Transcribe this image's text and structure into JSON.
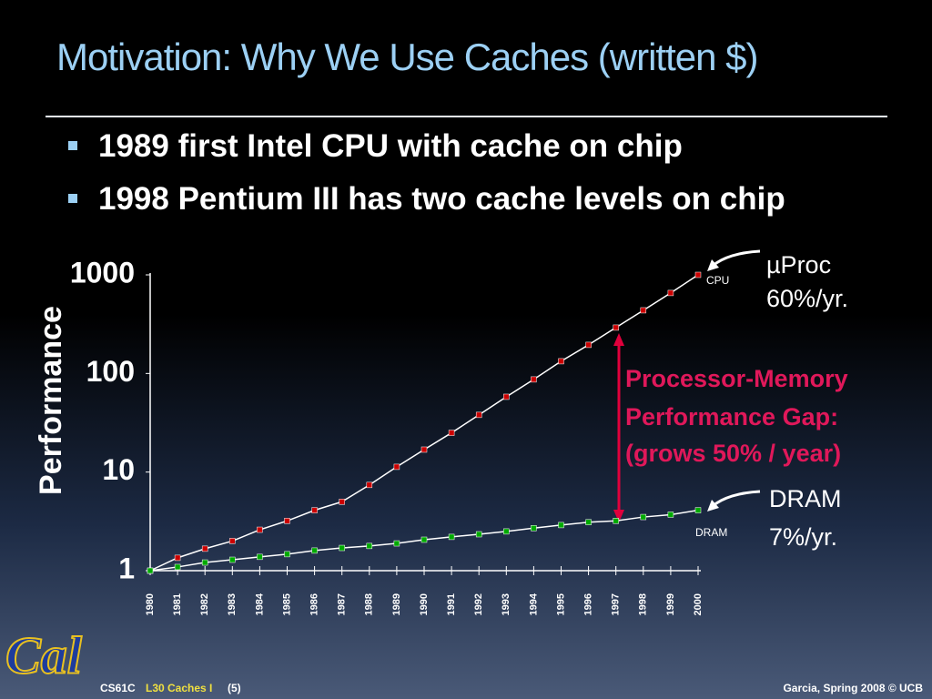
{
  "header": {
    "title": "Motivation: Why We Use Caches (written $)"
  },
  "bullets": [
    "1989 first Intel CPU with cache on chip",
    "1998 Pentium III has two cache levels on chip"
  ],
  "chart_data": {
    "type": "line",
    "y_label": "Performance",
    "categories": [
      "1980",
      "1981",
      "1982",
      "1983",
      "1984",
      "1985",
      "1986",
      "1987",
      "1988",
      "1989",
      "1990",
      "1991",
      "1992",
      "1993",
      "1994",
      "1995",
      "1996",
      "1997",
      "1998",
      "1999",
      "2000"
    ],
    "series": [
      {
        "name": "CPU",
        "color": "#cc0000",
        "values": [
          1,
          1.35,
          1.67,
          2.0,
          2.6,
          3.2,
          4.1,
          5.0,
          7.4,
          11.3,
          16.9,
          25,
          38,
          58,
          87,
          133,
          195,
          292,
          437,
          655,
          1000
        ]
      },
      {
        "name": "DRAM",
        "color": "#00aa00",
        "values": [
          1,
          1.09,
          1.21,
          1.29,
          1.38,
          1.47,
          1.6,
          1.7,
          1.78,
          1.89,
          2.06,
          2.2,
          2.34,
          2.5,
          2.7,
          2.9,
          3.1,
          3.2,
          3.5,
          3.7,
          4.1
        ]
      }
    ],
    "ylim": [
      1,
      1000
    ],
    "yticks": [
      1,
      10,
      100,
      1000
    ],
    "log_scale": true,
    "annotations": {
      "cpu_rate": [
        "µProc",
        "60%/yr."
      ],
      "dram_rate": [
        "DRAM",
        "7%/yr."
      ],
      "gap": [
        "Processor-Memory",
        "Performance Gap:",
        "(grows 50% / year)"
      ]
    }
  },
  "footer": {
    "course": "CS61C",
    "lecture": "L30 Caches I",
    "page": "(5)",
    "credit": "Garcia, Spring 2008 © UCB",
    "logo": "Cal"
  }
}
